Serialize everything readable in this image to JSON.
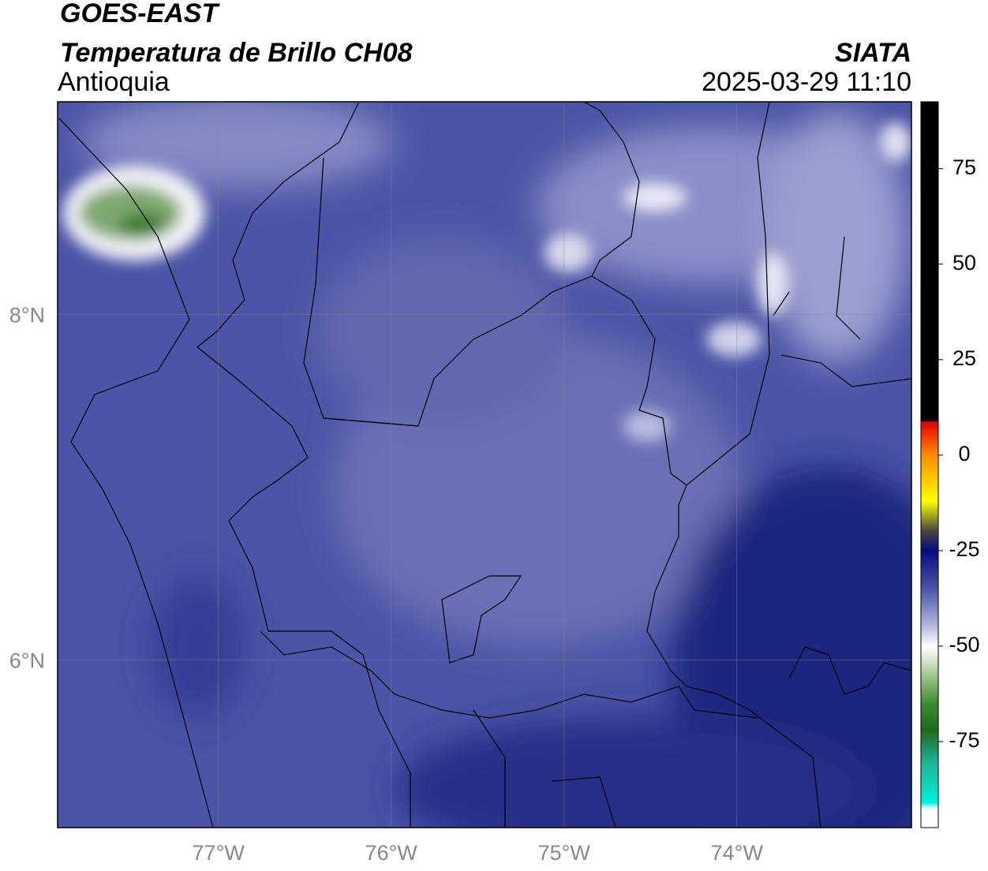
{
  "header": {
    "title": "GOES-EAST",
    "subtitle": "Temperatura de Brillo CH08",
    "region": "Antioquia",
    "source": "SIATA",
    "datetime": "2025-03-29 11:10"
  },
  "map": {
    "xlim": [
      -77.93,
      -72.99
    ],
    "ylim": [
      5.03,
      9.23
    ],
    "xticks": [
      {
        "value": -77,
        "label": "77°W"
      },
      {
        "value": -76,
        "label": "76°W"
      },
      {
        "value": -75,
        "label": "75°W"
      },
      {
        "value": -74,
        "label": "74°W"
      }
    ],
    "yticks": [
      {
        "value": 8,
        "label": "8°N"
      },
      {
        "value": 6,
        "label": "6°N"
      }
    ],
    "grid": true
  },
  "colorbar": {
    "range": [
      -97.5,
      92.5
    ],
    "ticks": [
      75,
      50,
      25,
      0,
      -25,
      -50,
      -75
    ]
  }
}
